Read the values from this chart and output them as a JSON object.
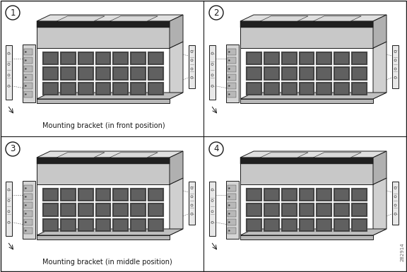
{
  "background_color": "#ffffff",
  "border_color": "#000000",
  "text_color": "#000000",
  "panel1_caption": "Mounting bracket (in front position)",
  "panel3_caption": "Mounting bracket (in middle position)",
  "watermark": "282914",
  "caption_fontsize": 7.0,
  "label_fontsize": 8.5,
  "watermark_fontsize": 5.0,
  "fig_width": 5.76,
  "fig_height": 3.85,
  "dpi": 100
}
